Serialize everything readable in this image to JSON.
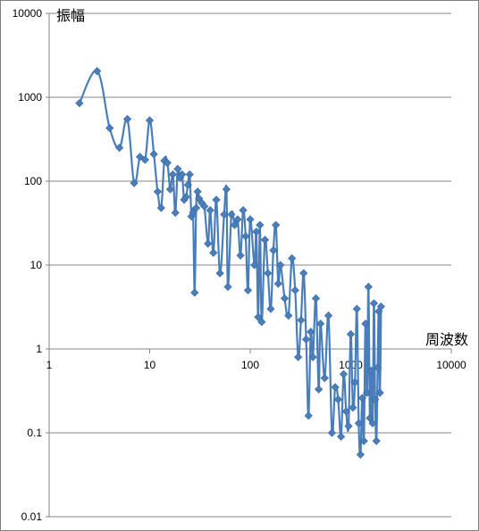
{
  "chart_data": {
    "type": "scatter",
    "title": "",
    "xlabel": "周波数",
    "ylabel": "振幅",
    "x_scale": "log",
    "y_scale": "log",
    "xlim": [
      1,
      10000
    ],
    "ylim": [
      0.01,
      10000
    ],
    "x_ticks": [
      "1",
      "10",
      "100",
      "1000",
      "10000"
    ],
    "y_ticks": [
      "10000",
      "1000",
      "100",
      "10",
      "1",
      "0.1",
      "0.01"
    ],
    "grid": "horizontal",
    "marker": "diamond",
    "line": "smoothed",
    "color": "#4a7ebb",
    "series": [
      {
        "points": [
          [
            2,
            850
          ],
          [
            3,
            2050
          ],
          [
            4,
            430
          ],
          [
            5,
            250
          ],
          [
            6,
            550
          ],
          [
            7,
            95
          ],
          [
            8,
            195
          ],
          [
            9,
            180
          ],
          [
            10,
            530
          ],
          [
            11,
            210
          ],
          [
            12,
            75
          ],
          [
            13,
            48
          ],
          [
            14,
            175
          ],
          [
            15,
            165
          ],
          [
            16,
            80
          ],
          [
            17,
            120
          ],
          [
            18,
            42
          ],
          [
            19,
            140
          ],
          [
            20,
            110
          ],
          [
            21,
            120
          ],
          [
            22,
            60
          ],
          [
            23,
            65
          ],
          [
            24,
            90
          ],
          [
            25,
            120
          ],
          [
            26,
            38
          ],
          [
            27,
            42
          ],
          [
            28,
            4.7
          ],
          [
            29,
            48
          ],
          [
            30,
            75
          ],
          [
            31,
            62
          ],
          [
            33,
            55
          ],
          [
            35,
            50
          ],
          [
            38,
            18
          ],
          [
            40,
            45
          ],
          [
            43,
            14
          ],
          [
            46,
            60
          ],
          [
            50,
            8
          ],
          [
            55,
            40
          ],
          [
            58,
            80
          ],
          [
            60,
            5.5
          ],
          [
            65,
            40
          ],
          [
            70,
            30
          ],
          [
            75,
            35
          ],
          [
            80,
            13
          ],
          [
            85,
            45
          ],
          [
            90,
            22
          ],
          [
            95,
            5.0
          ],
          [
            100,
            35
          ],
          [
            110,
            10
          ],
          [
            115,
            25
          ],
          [
            120,
            2.4
          ],
          [
            125,
            30
          ],
          [
            130,
            2.1
          ],
          [
            140,
            20
          ],
          [
            150,
            8
          ],
          [
            160,
            3.0
          ],
          [
            170,
            15
          ],
          [
            180,
            30
          ],
          [
            190,
            6
          ],
          [
            200,
            10
          ],
          [
            220,
            4
          ],
          [
            240,
            2.5
          ],
          [
            260,
            12
          ],
          [
            280,
            5
          ],
          [
            300,
            0.8
          ],
          [
            320,
            2.2
          ],
          [
            340,
            8
          ],
          [
            360,
            1.3
          ],
          [
            380,
            0.16
          ],
          [
            400,
            1.6
          ],
          [
            420,
            0.8
          ],
          [
            450,
            4
          ],
          [
            480,
            0.33
          ],
          [
            500,
            2
          ],
          [
            550,
            0.45
          ],
          [
            600,
            2.5
          ],
          [
            650,
            0.1
          ],
          [
            700,
            0.35
          ],
          [
            750,
            0.25
          ],
          [
            800,
            0.09
          ],
          [
            850,
            0.5
          ],
          [
            900,
            0.18
          ],
          [
            950,
            0.12
          ],
          [
            1000,
            1.5
          ],
          [
            1050,
            0.2
          ],
          [
            1100,
            0.4
          ],
          [
            1150,
            3
          ],
          [
            1200,
            0.13
          ],
          [
            1250,
            0.055
          ],
          [
            1300,
            0.26
          ],
          [
            1350,
            0.08
          ],
          [
            1400,
            2
          ],
          [
            1450,
            0.3
          ],
          [
            1500,
            5.5
          ],
          [
            1550,
            0.15
          ],
          [
            1600,
            0.55
          ],
          [
            1650,
            0.13
          ],
          [
            1700,
            3.5
          ],
          [
            1750,
            0.25
          ],
          [
            1800,
            0.08
          ],
          [
            1850,
            0.6
          ],
          [
            1900,
            2.8
          ],
          [
            1950,
            0.3
          ],
          [
            2000,
            3.2
          ]
        ]
      }
    ]
  }
}
